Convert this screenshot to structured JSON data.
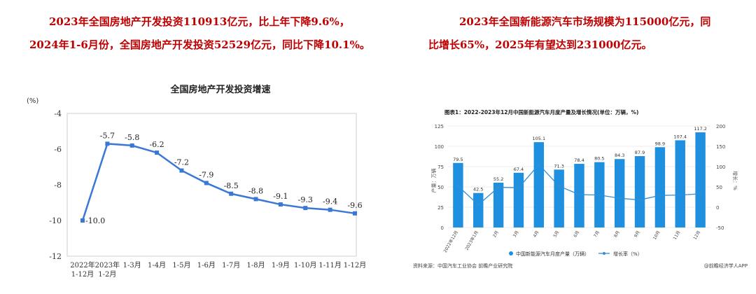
{
  "paragraphs": {
    "left": {
      "line1": "2023年全国房地产开发投资110913亿元，比上年下降9.6%，",
      "line2": "2024年1-6月份，全国房地产开发投资52529亿元，同比下降10.1%。"
    },
    "right": {
      "line1": "2023年全国新能源汽车市场规模为115000亿元，同",
      "line2": "比增长65%，2025年有望达到231000亿元。"
    }
  },
  "colors": {
    "text_accent": "#c00000",
    "left_line": "#3a78d6",
    "right_bar": "#1f8fe0",
    "right_line": "#2f8fd6"
  },
  "chart_data": [
    {
      "type": "line",
      "title": "全国房地产开发投资增速",
      "unit_label": "(%)",
      "categories": [
        [
          "2022年",
          "1-12月"
        ],
        [
          "2023年",
          "1-2月"
        ],
        [
          "1-3月"
        ],
        [
          "1-4月"
        ],
        [
          "1-5月"
        ],
        [
          "1-6月"
        ],
        [
          "1-7月"
        ],
        [
          "1-8月"
        ],
        [
          "1-9月"
        ],
        [
          "1-10月"
        ],
        [
          "1-11月"
        ],
        [
          "1-12月"
        ]
      ],
      "values": [
        -10.0,
        -5.7,
        -5.8,
        -6.2,
        -7.2,
        -7.9,
        -8.5,
        -8.8,
        -9.1,
        -9.3,
        -9.4,
        -9.6
      ],
      "value_labels": [
        "-10.0",
        "-5.7",
        "-5.8",
        "-6.2",
        "-7.2",
        "-7.9",
        "-8.5",
        "-8.8",
        "-9.1",
        "-9.3",
        "-9.4",
        "-9.6"
      ],
      "ylim": [
        -12,
        -4
      ],
      "yticks": [
        "-4",
        "-6",
        "-8",
        "-10",
        "-12"
      ],
      "grid": false
    },
    {
      "type": "bar",
      "title": "图表1：2022-2023年12月中国新能源汽车月度产量及增长情况(单位：万辆，%)",
      "categories": [
        "2022年12月",
        "2023年1月",
        "2月",
        "3月",
        "4月",
        "5月",
        "6月",
        "7月",
        "8月",
        "9月",
        "10月",
        "11月",
        "12月"
      ],
      "series": [
        {
          "name": "中国新能源汽车月度产量（万辆）",
          "kind": "bar",
          "axis": "left",
          "values": [
            79.5,
            42.5,
            55.2,
            67.4,
            105.1,
            71.3,
            78.4,
            80.5,
            84.3,
            87.9,
            98.9,
            107.4,
            117.2
          ],
          "labels": [
            "79.5",
            "42.5",
            "55.2",
            "67.4",
            "105.1",
            "71.3",
            "78.4",
            "80.5",
            "84.3",
            "87.9",
            "98.9",
            "107.4",
            "117.2"
          ]
        },
        {
          "name": "增长率（%）",
          "kind": "line",
          "axis": "right",
          "values": [
            52,
            6,
            49,
            48,
            105,
            52,
            31,
            30,
            22,
            18,
            29,
            30,
            33
          ]
        }
      ],
      "left_axis_label": "产量：万辆",
      "right_axis_label": "增长：%",
      "ylim_left": [
        0,
        125
      ],
      "yticks_left": [
        "0",
        "25",
        "50",
        "75",
        "100",
        "125"
      ],
      "ylim_right": [
        -50,
        200
      ],
      "yticks_right": [
        "-50",
        "0",
        "50",
        "100",
        "150",
        "200"
      ],
      "legend_position": "bottom",
      "source_note": "资料来源：中国汽车工业协会 前瞻产业研究院",
      "brand_note": "@前瞻经济学人APP"
    }
  ]
}
